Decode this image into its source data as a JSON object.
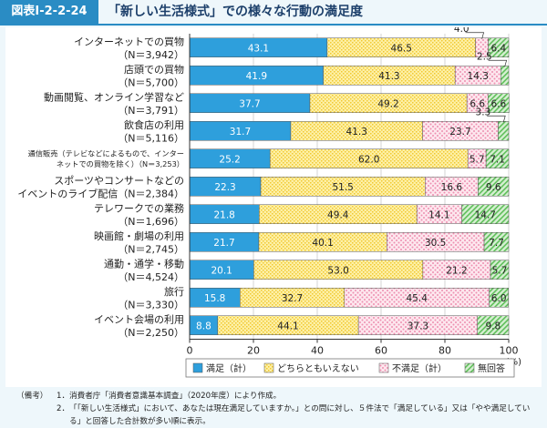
{
  "figure": {
    "id": "図表Ⅰ-2-2-24",
    "title": "「新しい生活様式」での様々な行動の満足度"
  },
  "chart_data": {
    "type": "bar",
    "orientation": "horizontal",
    "stacked": true,
    "xlim": [
      0,
      100
    ],
    "xticks": [
      0,
      20,
      40,
      60,
      80,
      100
    ],
    "x_unit": "(%)",
    "categories": [
      {
        "label": "インターネットでの買物",
        "n": "（N＝3,942）"
      },
      {
        "label": "店頭での買物",
        "n": "（N＝5,700）"
      },
      {
        "label": "動画閲覧、オンライン学習など",
        "n": "（N＝3,791）"
      },
      {
        "label": "飲食店の利用",
        "n": "（N＝5,116）"
      },
      {
        "label": "通信販売（テレビなどによるもので、インター",
        "n": "ネットでの買物を除く）（N＝3,253）"
      },
      {
        "label": "スポーツやコンサートなどの",
        "n": "イベントのライブ配信（N＝2,384）"
      },
      {
        "label": "テレワークでの業務",
        "n": "（N＝1,696）"
      },
      {
        "label": "映画館・劇場の利用",
        "n": "（N＝2,745）"
      },
      {
        "label": "通勤・通学・移動",
        "n": "（N＝4,524）"
      },
      {
        "label": "旅行",
        "n": "（N＝3,330）"
      },
      {
        "label": "イベント会場の利用",
        "n": "（N＝2,250）"
      }
    ],
    "series": [
      {
        "name": "満足（計）",
        "color": "#2e9fdc",
        "values": [
          43.1,
          41.9,
          37.7,
          31.7,
          25.2,
          22.3,
          21.8,
          21.7,
          20.1,
          15.8,
          8.8
        ]
      },
      {
        "name": "どちらともいえない",
        "color": "#fbe98a",
        "values": [
          46.5,
          41.3,
          49.2,
          41.3,
          62.0,
          51.5,
          49.4,
          40.1,
          53.0,
          32.7,
          44.1
        ]
      },
      {
        "name": "不満足（計）",
        "color": "#f7c6d6",
        "values": [
          4.0,
          14.3,
          6.6,
          23.7,
          5.7,
          16.6,
          14.1,
          30.5,
          21.2,
          45.4,
          37.3
        ]
      },
      {
        "name": "無回答",
        "color": "#9fd89a",
        "values": [
          6.4,
          2.5,
          6.6,
          3.3,
          7.1,
          9.6,
          14.7,
          7.7,
          5.7,
          6.0,
          9.8
        ]
      }
    ],
    "callouts": [
      {
        "row": 0,
        "series": 2,
        "text": "4.0"
      },
      {
        "row": 1,
        "series": 3,
        "text": "2.5"
      },
      {
        "row": 3,
        "series": 3,
        "text": "3.3"
      }
    ]
  },
  "notes": {
    "head": "（備考）",
    "items": [
      {
        "num": "1．",
        "text": "消費者庁「消費者意識基本調査」（2020年度）により作成。"
      },
      {
        "num": "2．",
        "text": "「「新しい生活様式」において、あなたは現在満足していますか。」との問に対し、５件法で「満足している」又は「やや満足している」と回答した合計数が多い順に表示。"
      }
    ]
  }
}
